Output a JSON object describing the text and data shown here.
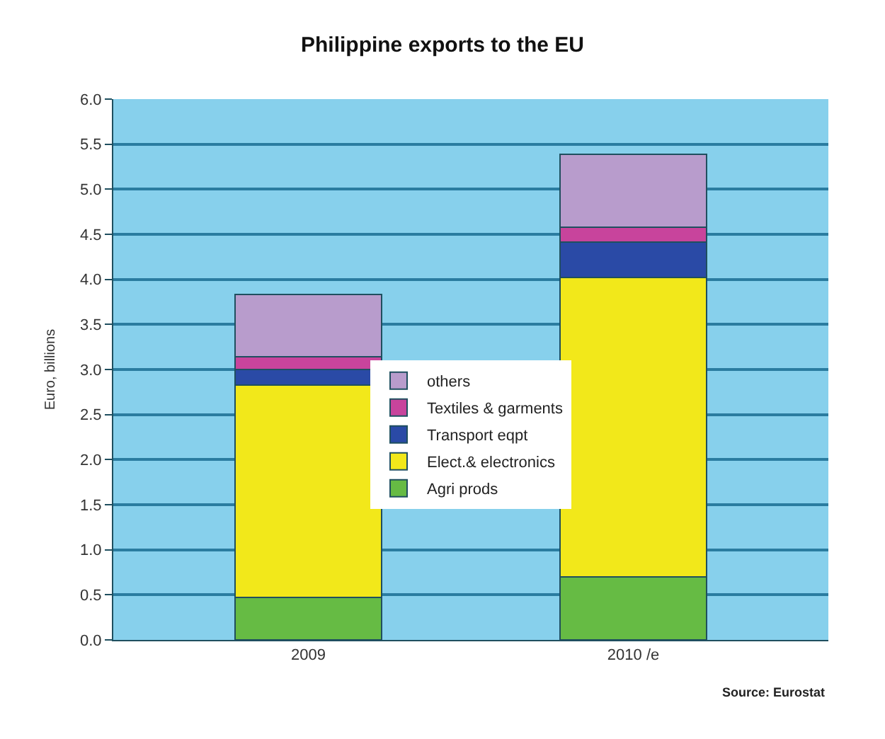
{
  "chart_data": {
    "type": "bar",
    "title": "Philippine exports to the EU",
    "ylabel": "Euro, billions",
    "categories": [
      "2009",
      "2010 /e"
    ],
    "stacked": true,
    "series": [
      {
        "name": "Agri prods",
        "color": "#66bb44",
        "values": [
          0.47,
          0.7
        ]
      },
      {
        "name": "Elect.& electronics",
        "color": "#f2e81a",
        "values": [
          2.36,
          3.32
        ]
      },
      {
        "name": "Transport eqpt",
        "color": "#2a4aa6",
        "values": [
          0.17,
          0.39
        ]
      },
      {
        "name": "Textiles & garments",
        "color": "#c8449c",
        "values": [
          0.14,
          0.17
        ]
      },
      {
        "name": "others",
        "color": "#b89ccc",
        "values": [
          0.69,
          0.81
        ]
      }
    ],
    "ylim": [
      0,
      6
    ],
    "yticks": [
      {
        "value": 0,
        "label": "0.0"
      },
      {
        "value": 0.5,
        "label": "0.5"
      },
      {
        "value": 1,
        "label": "1.0"
      },
      {
        "value": 1.5,
        "label": "1.5"
      },
      {
        "value": 2,
        "label": "2.0"
      },
      {
        "value": 2.5,
        "label": "2.5"
      },
      {
        "value": 3,
        "label": "3.0"
      },
      {
        "value": 3.5,
        "label": "3.5"
      },
      {
        "value": 4,
        "label": "4.0"
      },
      {
        "value": 4.5,
        "label": "4.5"
      },
      {
        "value": 5,
        "label": "5.0"
      },
      {
        "value": 5.5,
        "label": "5.5"
      },
      {
        "value": 6,
        "label": "6.0"
      }
    ],
    "grid": "y",
    "legend": "center",
    "annotations": [
      "Source: Eurostat"
    ]
  }
}
